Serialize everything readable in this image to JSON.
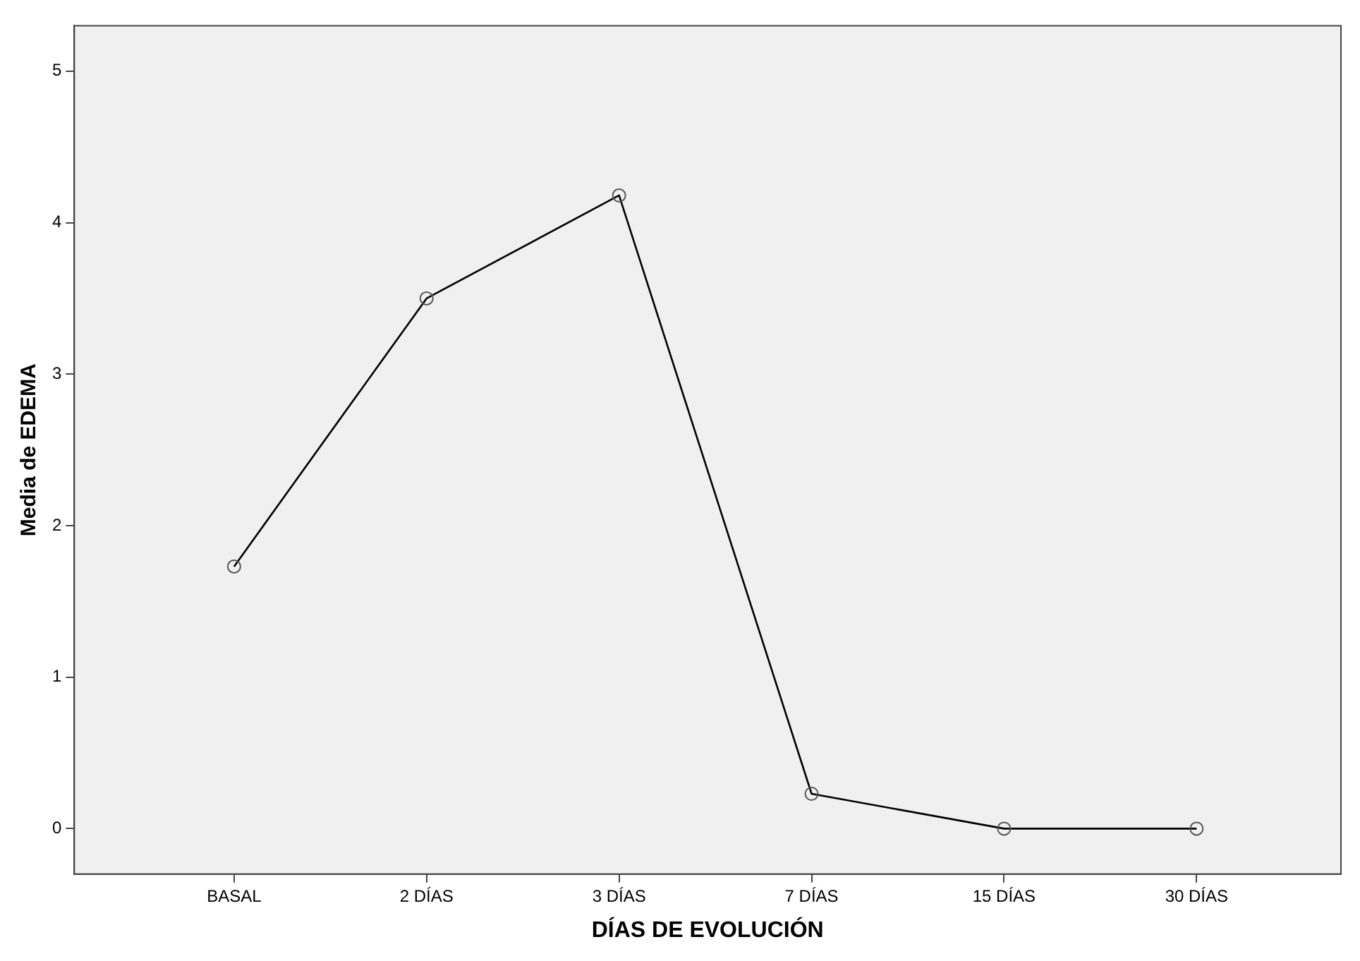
{
  "chart_data": {
    "type": "line",
    "xlabel": "DÍAS DE EVOLUCIÓN",
    "ylabel": "Media de EDEMA",
    "categories": [
      "BASAL",
      "2 DÍAS",
      "3 DÍAS",
      "7 DÍAS",
      "15 DÍAS",
      "30 DÍAS"
    ],
    "series": [
      {
        "color": "#000000",
        "values": [
          1.73,
          3.5,
          4.18,
          0.23,
          0,
          0
        ]
      }
    ],
    "ylim": [
      -0.3,
      5.3
    ],
    "yticks": [
      0,
      1,
      2,
      3,
      4,
      5
    ],
    "grid": false,
    "legend": false,
    "marker": "circle",
    "line_style": "solid"
  }
}
